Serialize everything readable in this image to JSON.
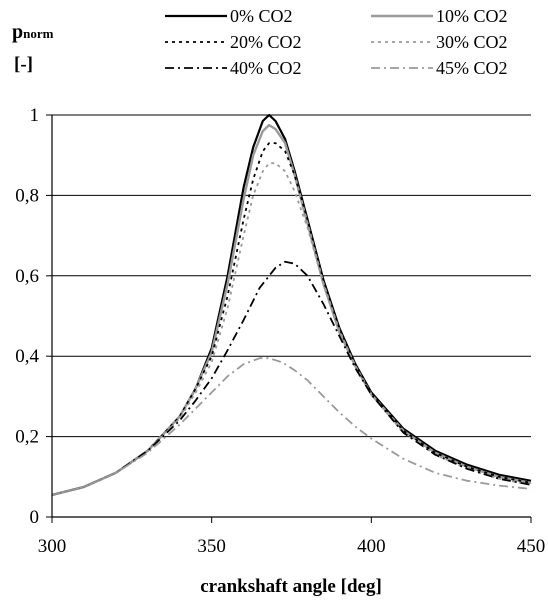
{
  "chart_data": {
    "type": "line",
    "title": "",
    "ylabel": {
      "main": "p",
      "sub": "norm",
      "unit": "[-]"
    },
    "xlabel": "crankshaft angle [deg]",
    "xlim": [
      300,
      450
    ],
    "ylim": [
      0,
      1
    ],
    "xticks": [
      300,
      350,
      400,
      450
    ],
    "xtick_labels": [
      "300",
      "350",
      "400",
      "450"
    ],
    "yticks": [
      0,
      0.2,
      0.4,
      0.6,
      0.8,
      1
    ],
    "ytick_labels": [
      "0",
      "0,2",
      "0,4",
      "0,6",
      "0,8",
      "1"
    ],
    "grid": "horizontal",
    "legend_position": "top",
    "series": [
      {
        "name": "0% CO2",
        "color": "#000000",
        "dash": "solid",
        "width": 2.2,
        "x": [
          300,
          310,
          320,
          330,
          340,
          345,
          350,
          355,
          360,
          363,
          366,
          368,
          370,
          373,
          376,
          380,
          385,
          390,
          395,
          400,
          410,
          420,
          430,
          440,
          450
        ],
        "y": [
          0.055,
          0.075,
          0.11,
          0.165,
          0.25,
          0.32,
          0.42,
          0.6,
          0.82,
          0.92,
          0.985,
          1.0,
          0.985,
          0.94,
          0.86,
          0.74,
          0.59,
          0.47,
          0.38,
          0.31,
          0.22,
          0.165,
          0.13,
          0.105,
          0.09
        ]
      },
      {
        "name": "10% CO2",
        "color": "#9a9a9a",
        "dash": "solid",
        "width": 2.4,
        "x": [
          300,
          310,
          320,
          330,
          340,
          345,
          350,
          355,
          360,
          363,
          366,
          368,
          370,
          373,
          376,
          380,
          385,
          390,
          395,
          400,
          410,
          420,
          430,
          440,
          450
        ],
        "y": [
          0.055,
          0.075,
          0.11,
          0.165,
          0.25,
          0.32,
          0.41,
          0.58,
          0.79,
          0.9,
          0.96,
          0.975,
          0.965,
          0.93,
          0.85,
          0.73,
          0.58,
          0.46,
          0.375,
          0.305,
          0.215,
          0.16,
          0.125,
          0.1,
          0.085
        ]
      },
      {
        "name": "20% CO2",
        "color": "#000000",
        "dash": "dot",
        "width": 1.8,
        "x": [
          300,
          310,
          320,
          330,
          340,
          345,
          350,
          355,
          360,
          363,
          366,
          368,
          370,
          373,
          376,
          380,
          385,
          390,
          395,
          400,
          410,
          420,
          430,
          440,
          450
        ],
        "y": [
          0.055,
          0.075,
          0.11,
          0.165,
          0.25,
          0.32,
          0.4,
          0.55,
          0.74,
          0.84,
          0.91,
          0.93,
          0.93,
          0.91,
          0.85,
          0.74,
          0.59,
          0.47,
          0.38,
          0.31,
          0.215,
          0.16,
          0.125,
          0.1,
          0.085
        ]
      },
      {
        "name": "30% CO2",
        "color": "#9a9a9a",
        "dash": "dot",
        "width": 1.8,
        "x": [
          300,
          310,
          320,
          330,
          340,
          345,
          350,
          355,
          360,
          363,
          366,
          368,
          370,
          373,
          376,
          380,
          385,
          390,
          395,
          400,
          410,
          420,
          430,
          440,
          450
        ],
        "y": [
          0.055,
          0.075,
          0.11,
          0.165,
          0.245,
          0.31,
          0.385,
          0.52,
          0.7,
          0.8,
          0.86,
          0.88,
          0.88,
          0.86,
          0.81,
          0.72,
          0.58,
          0.465,
          0.375,
          0.305,
          0.21,
          0.155,
          0.12,
          0.095,
          0.08
        ]
      },
      {
        "name": "40% CO2",
        "color": "#000000",
        "dash": "dashdot",
        "width": 1.8,
        "x": [
          300,
          310,
          320,
          330,
          340,
          345,
          350,
          355,
          360,
          365,
          370,
          373,
          376,
          380,
          385,
          390,
          395,
          400,
          410,
          420,
          430,
          440,
          450
        ],
        "y": [
          0.055,
          0.075,
          0.11,
          0.165,
          0.24,
          0.29,
          0.345,
          0.415,
          0.49,
          0.57,
          0.62,
          0.635,
          0.63,
          0.6,
          0.53,
          0.45,
          0.37,
          0.305,
          0.21,
          0.155,
          0.12,
          0.095,
          0.08
        ]
      },
      {
        "name": "45% CO2",
        "color": "#9a9a9a",
        "dash": "dashdot",
        "width": 1.8,
        "x": [
          300,
          310,
          320,
          330,
          340,
          345,
          350,
          355,
          360,
          365,
          368,
          372,
          376,
          380,
          385,
          390,
          395,
          400,
          410,
          420,
          430,
          440,
          450
        ],
        "y": [
          0.055,
          0.075,
          0.11,
          0.16,
          0.23,
          0.27,
          0.31,
          0.35,
          0.38,
          0.395,
          0.395,
          0.385,
          0.365,
          0.34,
          0.3,
          0.26,
          0.225,
          0.195,
          0.145,
          0.11,
          0.09,
          0.078,
          0.07
        ]
      }
    ]
  }
}
